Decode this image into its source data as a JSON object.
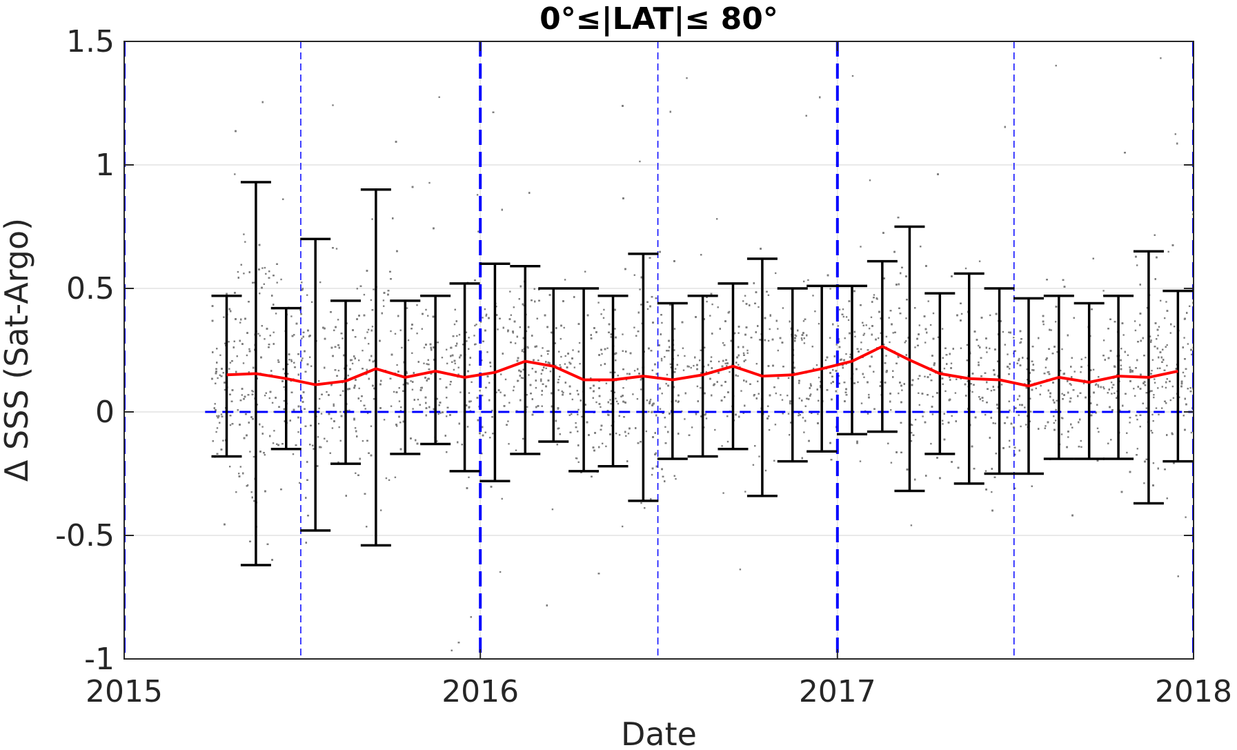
{
  "chart_data": {
    "type": "scatter",
    "title": "0°≤|LAT|≤ 80°",
    "xlabel": "Date",
    "ylabel": "Δ SSS (Sat-Argo)",
    "xlim": [
      "2015-01-01",
      "2018-01-01"
    ],
    "ylim": [
      -1,
      1.5
    ],
    "x_ticks": [
      {
        "date": "2015-01-01",
        "label": "2015"
      },
      {
        "date": "2016-01-01",
        "label": "2016"
      },
      {
        "date": "2017-01-01",
        "label": "2017"
      },
      {
        "date": "2018-01-01",
        "label": "2018"
      }
    ],
    "y_ticks": [
      {
        "value": 1.5,
        "label": "1.5"
      },
      {
        "value": 1,
        "label": "1"
      },
      {
        "value": 0.5,
        "label": "0.5"
      },
      {
        "value": 0,
        "label": "0"
      },
      {
        "value": -0.5,
        "label": "-0.5"
      },
      {
        "value": -1,
        "label": "-1"
      }
    ],
    "grid": true,
    "scatter_color": "#808080",
    "mean_line_color": "#ff0000",
    "errorbar_color": "#000000",
    "reference_line_color": "#0000ff",
    "zero_line": 0,
    "year_boundaries": [
      "2015-01-01",
      "2016-01-01",
      "2017-01-01",
      "2018-01-01"
    ],
    "mid_year_lines": [
      "2015-07-01",
      "2016-07-01",
      "2017-07-01"
    ],
    "scatter_range": [
      "2015-04-01",
      "2018-01-01"
    ],
    "series": [
      {
        "type": "errorbar",
        "x": [
          "2015-04-16",
          "2015-05-16",
          "2015-06-16",
          "2015-07-16",
          "2015-08-16",
          "2015-09-16",
          "2015-10-16",
          "2015-11-16",
          "2015-12-16",
          "2016-01-16",
          "2016-02-16",
          "2016-03-16",
          "2016-04-16",
          "2016-05-16",
          "2016-06-16",
          "2016-07-16",
          "2016-08-16",
          "2016-09-16",
          "2016-10-16",
          "2016-11-16",
          "2016-12-16",
          "2017-01-16",
          "2017-02-16",
          "2017-03-16",
          "2017-04-16",
          "2017-05-16",
          "2017-06-16",
          "2017-07-16",
          "2017-08-16",
          "2017-09-16",
          "2017-10-16",
          "2017-11-16",
          "2017-12-16"
        ],
        "mean": [
          0.15,
          0.155,
          0.135,
          0.11,
          0.125,
          0.175,
          0.14,
          0.165,
          0.14,
          0.16,
          0.205,
          0.185,
          0.13,
          0.13,
          0.145,
          0.13,
          0.15,
          0.185,
          0.145,
          0.15,
          0.175,
          0.205,
          0.265,
          0.21,
          0.155,
          0.135,
          0.13,
          0.105,
          0.14,
          0.12,
          0.145,
          0.14,
          0.165
        ],
        "lower": [
          -0.18,
          -0.62,
          -0.15,
          -0.48,
          -0.21,
          -0.54,
          -0.17,
          -0.13,
          -0.24,
          -0.28,
          -0.17,
          -0.12,
          -0.24,
          -0.22,
          -0.36,
          -0.19,
          -0.18,
          -0.15,
          -0.34,
          -0.2,
          -0.16,
          -0.09,
          -0.08,
          -0.32,
          -0.17,
          -0.29,
          -0.25,
          -0.25,
          -0.19,
          -0.19,
          -0.19,
          -0.37,
          -0.2
        ],
        "upper": [
          0.47,
          0.93,
          0.42,
          0.7,
          0.45,
          0.9,
          0.45,
          0.47,
          0.52,
          0.6,
          0.59,
          0.5,
          0.5,
          0.47,
          0.64,
          0.44,
          0.47,
          0.52,
          0.62,
          0.5,
          0.51,
          0.51,
          0.61,
          0.75,
          0.48,
          0.56,
          0.5,
          0.46,
          0.47,
          0.44,
          0.47,
          0.65,
          0.49
        ]
      }
    ]
  }
}
